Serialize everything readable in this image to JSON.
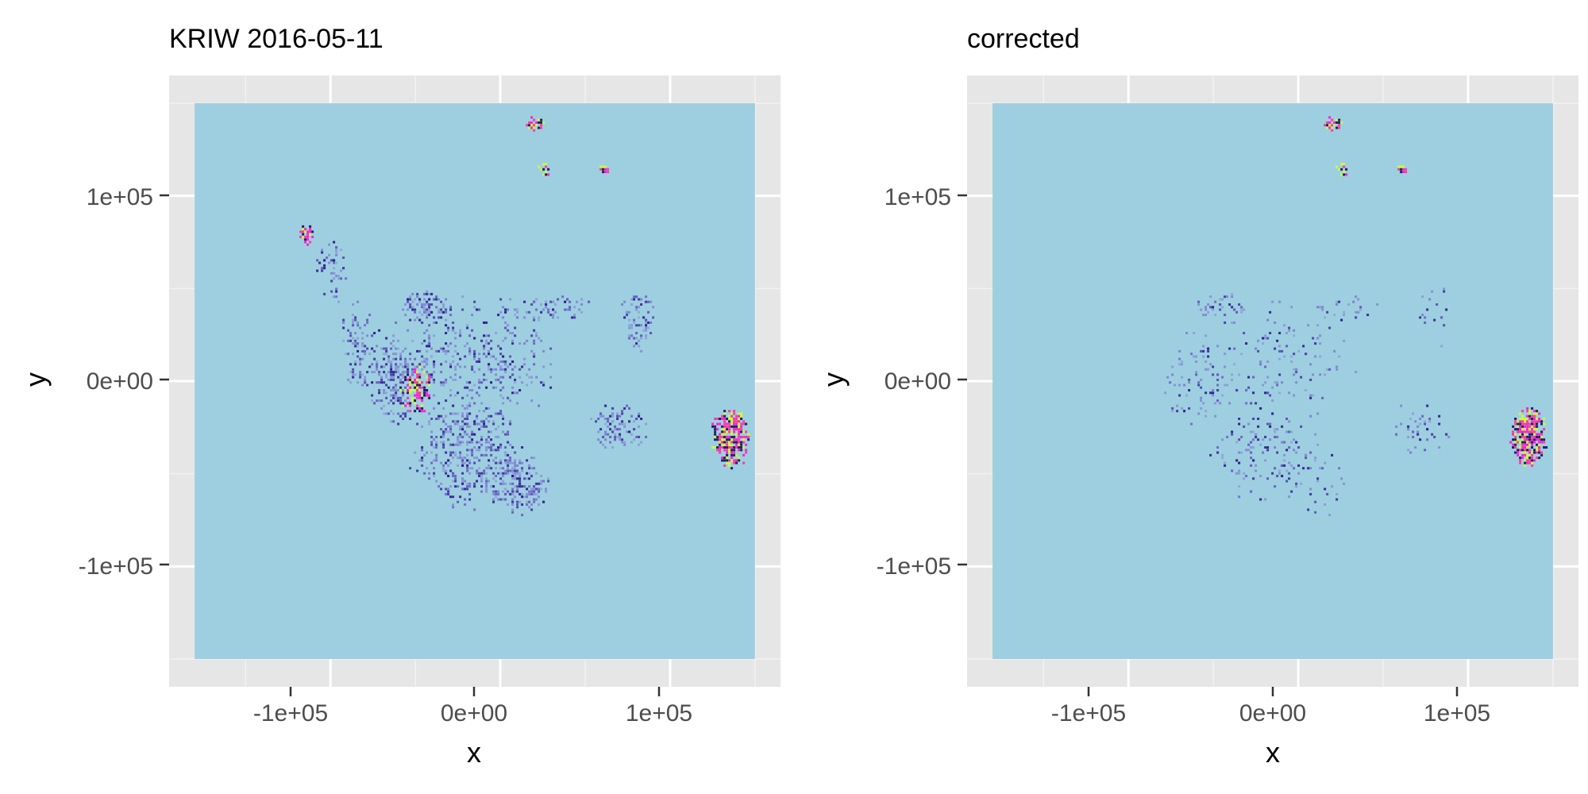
{
  "chart_data": [
    {
      "type": "heatmap",
      "title": "KRIW 2016-05-11",
      "xlabel": "x",
      "ylabel": "y",
      "xlim": [
        -195000,
        165000
      ],
      "ylim": [
        -165000,
        165000
      ],
      "raster_extent": {
        "x": [
          -180000,
          150000
        ],
        "y": [
          -150000,
          150000
        ]
      },
      "xticks": [
        -100000,
        0,
        100000
      ],
      "xtick_labels": [
        "-1e+05",
        "0e+00",
        "1e+05"
      ],
      "yticks": [
        -100000,
        0,
        100000
      ],
      "ytick_labels": [
        "-1e+05",
        "0e+00",
        "1e+05"
      ],
      "grid": true,
      "background": "#9ecfe0",
      "hotspots": [
        {
          "x": -45000,
          "y": 40000,
          "rx": 18000,
          "ry": 10000,
          "intensity": 0.95
        },
        {
          "x": -60000,
          "y": 0,
          "rx": 22000,
          "ry": 25000,
          "intensity": 0.8
        },
        {
          "x": -20000,
          "y": -40000,
          "rx": 35000,
          "ry": 30000,
          "intensity": 0.7
        },
        {
          "x": 10000,
          "y": -55000,
          "rx": 20000,
          "ry": 20000,
          "intensity": 0.75
        },
        {
          "x": 30000,
          "y": 40000,
          "rx": 25000,
          "ry": 8000,
          "intensity": 0.6
        },
        {
          "x": -20000,
          "y": 10000,
          "rx": 60000,
          "ry": 40000,
          "intensity": 0.35
        },
        {
          "x": 80000,
          "y": 35000,
          "rx": 12000,
          "ry": 20000,
          "intensity": 0.6
        },
        {
          "x": 70000,
          "y": -25000,
          "rx": 20000,
          "ry": 15000,
          "intensity": 0.55
        },
        {
          "x": -100000,
          "y": 60000,
          "rx": 10000,
          "ry": 20000,
          "intensity": 0.5
        },
        {
          "x": -85000,
          "y": 20000,
          "rx": 12000,
          "ry": 25000,
          "intensity": 0.6
        }
      ],
      "clutter": [
        {
          "x": 135000,
          "y": -30000,
          "rx": 12000,
          "ry": 18000,
          "intensity": 1.0
        },
        {
          "x": 20000,
          "y": 140000,
          "rx": 6000,
          "ry": 5000,
          "intensity": 0.9
        },
        {
          "x": 25000,
          "y": 115000,
          "rx": 4000,
          "ry": 5000,
          "intensity": 0.9
        },
        {
          "x": 60000,
          "y": 115000,
          "rx": 4000,
          "ry": 3000,
          "intensity": 0.8
        },
        {
          "x": -115000,
          "y": 80000,
          "rx": 5000,
          "ry": 6000,
          "intensity": 0.7
        },
        {
          "x": -50000,
          "y": -5000,
          "rx": 10000,
          "ry": 15000,
          "intensity": 0.6
        }
      ],
      "colors": {
        "low": "#9ecfe0",
        "mid": "#7b78d0",
        "high": "#2a1a88",
        "clutter": [
          "#ff1fd3",
          "#c8ff3a",
          "#1f1f60",
          "#ff3aa0"
        ]
      }
    },
    {
      "type": "heatmap",
      "title": "corrected",
      "xlabel": "x",
      "ylabel": "y",
      "xlim": [
        -195000,
        165000
      ],
      "ylim": [
        -165000,
        165000
      ],
      "raster_extent": {
        "x": [
          -180000,
          150000
        ],
        "y": [
          -150000,
          150000
        ]
      },
      "xticks": [
        -100000,
        0,
        100000
      ],
      "xtick_labels": [
        "-1e+05",
        "0e+00",
        "1e+05"
      ],
      "yticks": [
        -100000,
        0,
        100000
      ],
      "ytick_labels": [
        "-1e+05",
        "0e+00",
        "1e+05"
      ],
      "grid": true,
      "background": "#9ecfe0",
      "hotspots": [
        {
          "x": -45000,
          "y": 40000,
          "rx": 18000,
          "ry": 10000,
          "intensity": 0.35
        },
        {
          "x": -60000,
          "y": 0,
          "rx": 22000,
          "ry": 25000,
          "intensity": 0.25
        },
        {
          "x": -20000,
          "y": -40000,
          "rx": 35000,
          "ry": 30000,
          "intensity": 0.25
        },
        {
          "x": 10000,
          "y": -55000,
          "rx": 20000,
          "ry": 20000,
          "intensity": 0.2
        },
        {
          "x": 30000,
          "y": 40000,
          "rx": 25000,
          "ry": 8000,
          "intensity": 0.3
        },
        {
          "x": -20000,
          "y": 10000,
          "rx": 60000,
          "ry": 40000,
          "intensity": 0.15
        },
        {
          "x": 80000,
          "y": 35000,
          "rx": 12000,
          "ry": 20000,
          "intensity": 0.2
        },
        {
          "x": 70000,
          "y": -25000,
          "rx": 20000,
          "ry": 15000,
          "intensity": 0.2
        }
      ],
      "clutter": [
        {
          "x": 135000,
          "y": -30000,
          "rx": 12000,
          "ry": 18000,
          "intensity": 1.0
        },
        {
          "x": 20000,
          "y": 140000,
          "rx": 6000,
          "ry": 5000,
          "intensity": 0.9
        },
        {
          "x": 25000,
          "y": 115000,
          "rx": 4000,
          "ry": 5000,
          "intensity": 0.9
        },
        {
          "x": 60000,
          "y": 115000,
          "rx": 4000,
          "ry": 3000,
          "intensity": 0.8
        }
      ],
      "colors": {
        "low": "#9ecfe0",
        "mid": "#7b78d0",
        "high": "#2a1a88",
        "clutter": [
          "#ff1fd3",
          "#c8ff3a",
          "#1f1f60",
          "#ff3aa0"
        ]
      }
    }
  ]
}
